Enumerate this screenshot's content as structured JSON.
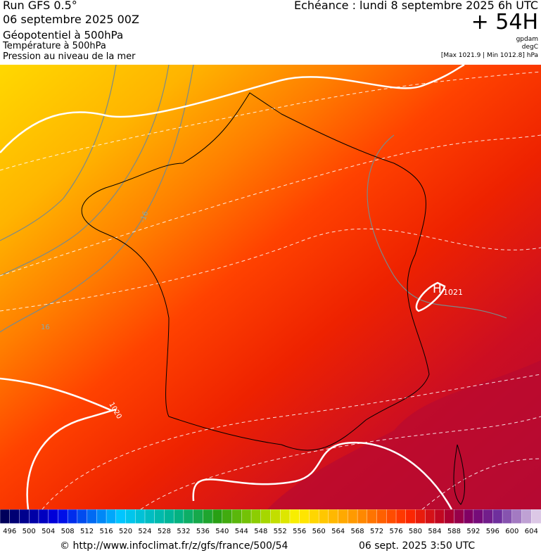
{
  "header": {
    "run": "Run GFS 0.5°",
    "date": "06 septembre 2025 00Z",
    "fields": [
      "Géopotentiel à 500hPa",
      "Température à 500hPa",
      "Pression au niveau de la mer"
    ],
    "echeance": "Echéance : lundi 8 septembre 2025 6h UTC",
    "lead": "+ 54H",
    "units": [
      "gpdam",
      "degC",
      "[Max 1021.9 | Min 1012.8] hPa"
    ]
  },
  "map": {
    "labels": [
      "16",
      "-16",
      "1020",
      "H",
      "1021"
    ]
  },
  "colorbar": {
    "labels": [
      496,
      500,
      504,
      508,
      512,
      516,
      520,
      524,
      528,
      532,
      536,
      540,
      544,
      548,
      552,
      556,
      560,
      564,
      568,
      572,
      576,
      580,
      584,
      588,
      592,
      596,
      600,
      604
    ]
  },
  "footer": {
    "url": "© http://www.infoclimat.fr/z/gfs/france/500/54",
    "timestamp": "06 sept. 2025  3:50 UTC"
  }
}
